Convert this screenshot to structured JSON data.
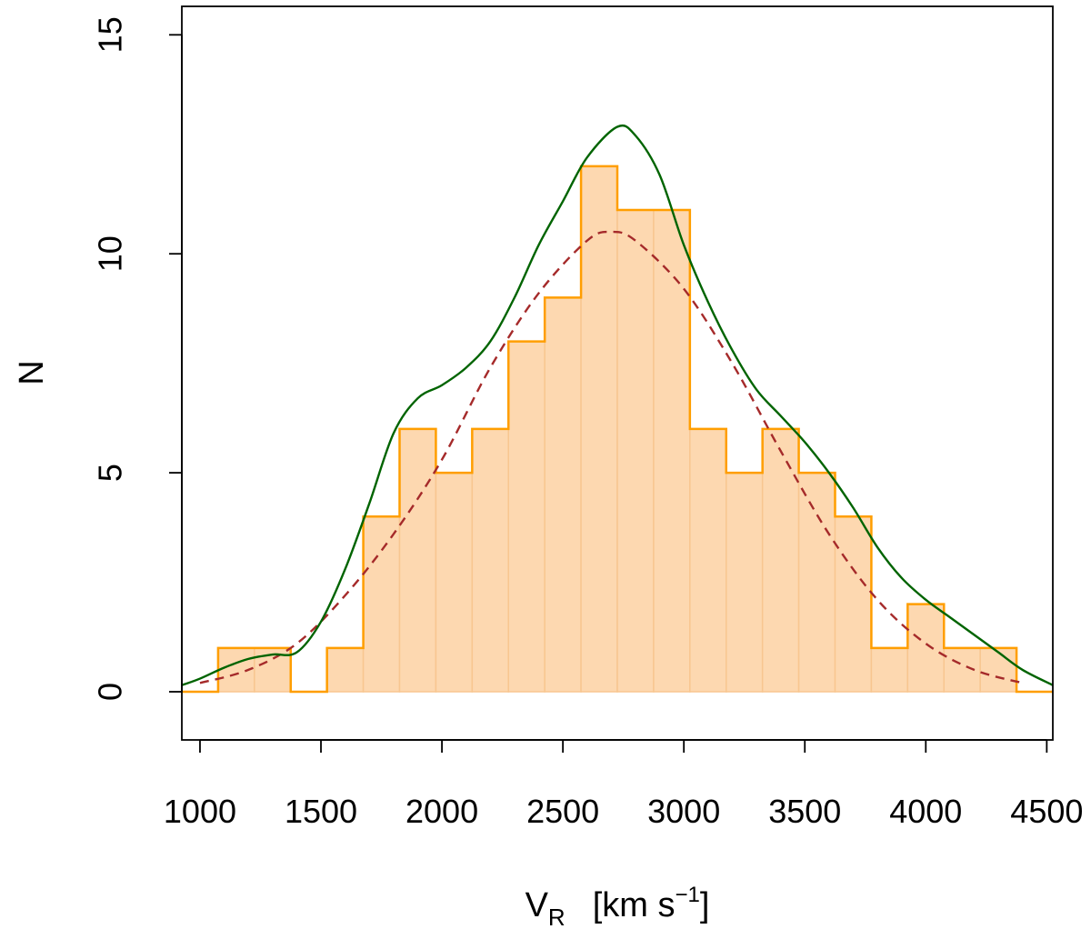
{
  "chart_data": {
    "type": "bar",
    "xlabel": {
      "main": "V",
      "sub": "R",
      "unit_open": "[km s",
      "unit_sup": "−1",
      "unit_close": "]"
    },
    "ylabel": "N",
    "xlim": [
      925,
      4525
    ],
    "ylim": [
      -1.1,
      15.65
    ],
    "x_ticks": [
      1000,
      1500,
      2000,
      2500,
      3000,
      3500,
      4000,
      4500
    ],
    "x_tick_labels": [
      "1000",
      "1500",
      "2000",
      "2500",
      "3000",
      "3500",
      "4000",
      "4500"
    ],
    "y_ticks": [
      0,
      5,
      10,
      15
    ],
    "y_tick_labels": [
      "0",
      "5",
      "10",
      "15"
    ],
    "grid": false,
    "bins": {
      "edges": [
        925,
        1075,
        1225,
        1375,
        1525,
        1675,
        1825,
        1975,
        2125,
        2275,
        2425,
        2575,
        2725,
        2875,
        3025,
        3175,
        3325,
        3475,
        3625,
        3775,
        3925,
        4075,
        4225,
        4375,
        4525
      ],
      "counts": [
        0,
        1,
        1,
        0,
        1,
        4,
        6,
        5,
        6,
        8,
        9,
        12,
        11,
        11,
        6,
        5,
        6,
        5,
        4,
        1,
        2,
        1,
        1,
        0
      ]
    },
    "colors": {
      "bar_fill": "#fdd8b0",
      "bar_inner_edge": "#f8c690",
      "histogram_outline": "#ff9e00",
      "kde_curve": "#006400",
      "gaussian_fit": "#a52a2a"
    },
    "series": [
      {
        "style": "solid",
        "x": [
          925,
          1000,
          1100,
          1200,
          1300,
          1400,
          1500,
          1600,
          1700,
          1800,
          1900,
          2000,
          2100,
          2200,
          2300,
          2400,
          2500,
          2600,
          2725,
          2800,
          2900,
          3000,
          3100,
          3200,
          3300,
          3400,
          3500,
          3600,
          3700,
          3800,
          3900,
          4000,
          4100,
          4200,
          4300,
          4400,
          4525
        ],
        "y": [
          0.15,
          0.3,
          0.55,
          0.75,
          0.85,
          0.9,
          1.6,
          2.8,
          4.3,
          5.9,
          6.7,
          7.0,
          7.4,
          8.0,
          9.0,
          10.2,
          11.2,
          12.2,
          12.9,
          12.7,
          11.8,
          10.2,
          8.9,
          7.8,
          6.9,
          6.3,
          5.7,
          5.0,
          4.2,
          3.3,
          2.6,
          2.1,
          1.7,
          1.3,
          0.9,
          0.5,
          0.15
        ]
      },
      {
        "style": "dashed",
        "x": [
          1000,
          1200,
          1400,
          1600,
          1800,
          2000,
          2200,
          2400,
          2600,
          2700,
          2800,
          3000,
          3200,
          3400,
          3600,
          3800,
          4000,
          4200,
          4400
        ],
        "y": [
          0.2,
          0.5,
          1.1,
          2.2,
          3.6,
          5.3,
          7.4,
          9.1,
          10.3,
          10.5,
          10.3,
          9.2,
          7.5,
          5.5,
          3.6,
          2.1,
          1.1,
          0.5,
          0.2
        ]
      }
    ]
  }
}
